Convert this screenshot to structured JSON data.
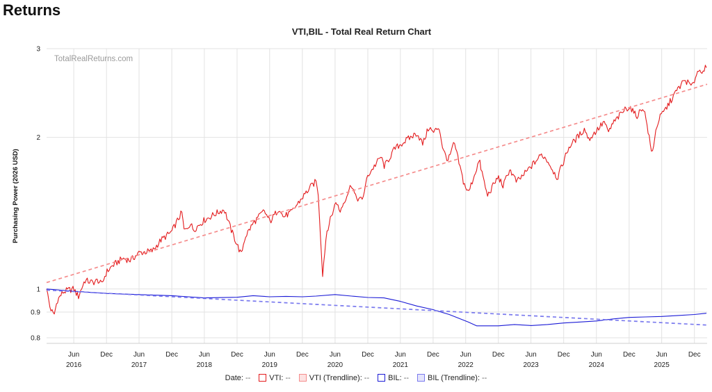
{
  "page": {
    "heading": "Returns"
  },
  "chart_data": {
    "type": "line",
    "title": "VTI,BIL - Total Real Return Chart",
    "watermark": "TotalRealReturns.com",
    "ylabel": "Purchasing Power (2026 USD)",
    "xlabel": "",
    "y_scale": "log",
    "ylim": [
      0.78,
      3.0
    ],
    "xlim": [
      "2016-01-01",
      "2026-02-10"
    ],
    "grid": true,
    "legend_position": "bottom",
    "y_ticks": [
      {
        "value": 0.8,
        "label": "0.8"
      },
      {
        "value": 0.9,
        "label": "0.9"
      },
      {
        "value": 1,
        "label": "1"
      },
      {
        "value": 2,
        "label": "2"
      },
      {
        "value": 3,
        "label": "3"
      }
    ],
    "x_ticks": [
      {
        "date": "2016-06-01",
        "label": "Jun",
        "year": "2016"
      },
      {
        "date": "2016-12-01",
        "label": "Dec",
        "year": ""
      },
      {
        "date": "2017-06-01",
        "label": "Jun",
        "year": "2017"
      },
      {
        "date": "2017-12-01",
        "label": "Dec",
        "year": ""
      },
      {
        "date": "2018-06-01",
        "label": "Jun",
        "year": "2018"
      },
      {
        "date": "2018-12-01",
        "label": "Dec",
        "year": ""
      },
      {
        "date": "2019-06-01",
        "label": "Jun",
        "year": "2019"
      },
      {
        "date": "2019-12-01",
        "label": "Dec",
        "year": ""
      },
      {
        "date": "2020-06-01",
        "label": "Jun",
        "year": "2020"
      },
      {
        "date": "2020-12-01",
        "label": "Dec",
        "year": ""
      },
      {
        "date": "2021-06-01",
        "label": "Jun",
        "year": "2021"
      },
      {
        "date": "2021-12-01",
        "label": "Dec",
        "year": ""
      },
      {
        "date": "2022-06-01",
        "label": "Jun",
        "year": "2022"
      },
      {
        "date": "2022-12-01",
        "label": "Dec",
        "year": ""
      },
      {
        "date": "2023-06-01",
        "label": "Jun",
        "year": "2023"
      },
      {
        "date": "2023-12-01",
        "label": "Dec",
        "year": ""
      },
      {
        "date": "2024-06-01",
        "label": "Jun",
        "year": "2024"
      },
      {
        "date": "2024-12-01",
        "label": "Dec",
        "year": ""
      },
      {
        "date": "2025-06-01",
        "label": "Jun",
        "year": "2025"
      },
      {
        "date": "2025-12-01",
        "label": "Dec",
        "year": ""
      }
    ],
    "series": [
      {
        "name": "VTI",
        "color": "#e31a1c",
        "dashed": false,
        "points": [
          [
            "2016-01-01",
            1.0
          ],
          [
            "2016-01-20",
            0.92
          ],
          [
            "2016-02-11",
            0.885
          ],
          [
            "2016-03-01",
            0.95
          ],
          [
            "2016-04-01",
            0.985
          ],
          [
            "2016-05-01",
            0.995
          ],
          [
            "2016-06-01",
            1.0
          ],
          [
            "2016-06-27",
            0.965
          ],
          [
            "2016-08-01",
            1.04
          ],
          [
            "2016-09-15",
            1.03
          ],
          [
            "2016-10-15",
            1.04
          ],
          [
            "2016-11-03",
            1.02
          ],
          [
            "2016-12-01",
            1.08
          ],
          [
            "2017-01-01",
            1.11
          ],
          [
            "2017-03-01",
            1.15
          ],
          [
            "2017-04-15",
            1.14
          ],
          [
            "2017-06-01",
            1.18
          ],
          [
            "2017-08-15",
            1.19
          ],
          [
            "2017-10-01",
            1.25
          ],
          [
            "2017-12-01",
            1.3
          ],
          [
            "2018-01-26",
            1.42
          ],
          [
            "2018-02-09",
            1.3
          ],
          [
            "2018-03-15",
            1.35
          ],
          [
            "2018-04-01",
            1.31
          ],
          [
            "2018-06-01",
            1.37
          ],
          [
            "2018-08-01",
            1.41
          ],
          [
            "2018-09-20",
            1.44
          ],
          [
            "2018-10-29",
            1.31
          ],
          [
            "2018-12-24",
            1.17
          ],
          [
            "2019-01-15",
            1.27
          ],
          [
            "2019-03-01",
            1.35
          ],
          [
            "2019-05-01",
            1.43
          ],
          [
            "2019-06-03",
            1.36
          ],
          [
            "2019-07-26",
            1.45
          ],
          [
            "2019-08-15",
            1.39
          ],
          [
            "2019-10-01",
            1.42
          ],
          [
            "2019-12-01",
            1.52
          ],
          [
            "2020-01-20",
            1.6
          ],
          [
            "2020-02-19",
            1.64
          ],
          [
            "2020-03-02",
            1.48
          ],
          [
            "2020-03-23",
            1.07
          ],
          [
            "2020-04-15",
            1.3
          ],
          [
            "2020-06-08",
            1.5
          ],
          [
            "2020-06-26",
            1.42
          ],
          [
            "2020-09-02",
            1.62
          ],
          [
            "2020-09-23",
            1.52
          ],
          [
            "2020-10-30",
            1.5
          ],
          [
            "2020-12-01",
            1.68
          ],
          [
            "2021-02-12",
            1.83
          ],
          [
            "2021-03-04",
            1.75
          ],
          [
            "2021-05-01",
            1.9
          ],
          [
            "2021-07-01",
            1.97
          ],
          [
            "2021-09-02",
            2.04
          ],
          [
            "2021-10-04",
            1.94
          ],
          [
            "2021-11-08",
            2.1
          ],
          [
            "2021-12-01",
            2.04
          ],
          [
            "2022-01-03",
            2.1
          ],
          [
            "2022-01-27",
            1.88
          ],
          [
            "2022-02-24",
            1.8
          ],
          [
            "2022-03-29",
            1.95
          ],
          [
            "2022-05-20",
            1.63
          ],
          [
            "2022-06-16",
            1.55
          ],
          [
            "2022-08-16",
            1.8
          ],
          [
            "2022-09-30",
            1.53
          ],
          [
            "2022-11-30",
            1.67
          ],
          [
            "2022-12-28",
            1.6
          ],
          [
            "2023-02-02",
            1.73
          ],
          [
            "2023-03-13",
            1.63
          ],
          [
            "2023-05-01",
            1.7
          ],
          [
            "2023-07-31",
            1.85
          ],
          [
            "2023-09-01",
            1.8
          ],
          [
            "2023-10-27",
            1.66
          ],
          [
            "2023-12-29",
            1.91
          ],
          [
            "2024-03-28",
            2.08
          ],
          [
            "2024-04-19",
            1.98
          ],
          [
            "2024-07-16",
            2.15
          ],
          [
            "2024-08-05",
            2.04
          ],
          [
            "2024-09-01",
            2.13
          ],
          [
            "2024-11-11",
            2.28
          ],
          [
            "2024-12-06",
            2.3
          ],
          [
            "2025-01-10",
            2.2
          ],
          [
            "2025-02-19",
            2.3
          ],
          [
            "2025-03-13",
            2.1
          ],
          [
            "2025-04-08",
            1.84
          ],
          [
            "2025-04-24",
            2.02
          ],
          [
            "2025-05-15",
            2.17
          ],
          [
            "2025-07-01",
            2.3
          ],
          [
            "2025-08-01",
            2.4
          ],
          [
            "2025-09-01",
            2.5
          ],
          [
            "2025-10-08",
            2.6
          ],
          [
            "2025-11-20",
            2.52
          ],
          [
            "2025-12-15",
            2.7
          ],
          [
            "2026-01-15",
            2.72
          ],
          [
            "2026-02-06",
            2.75
          ]
        ]
      },
      {
        "name": "VTI (Trendline)",
        "color": "#f58c8c",
        "dashed": true,
        "points": [
          [
            "2016-01-01",
            1.03
          ],
          [
            "2026-02-10",
            2.55
          ]
        ]
      },
      {
        "name": "BIL",
        "color": "#1a1ad6",
        "dashed": false,
        "points": [
          [
            "2016-01-01",
            1.0
          ],
          [
            "2016-06-01",
            0.99
          ],
          [
            "2016-12-01",
            0.98
          ],
          [
            "2017-06-01",
            0.975
          ],
          [
            "2017-12-01",
            0.97
          ],
          [
            "2018-06-01",
            0.96
          ],
          [
            "2018-12-01",
            0.963
          ],
          [
            "2019-03-01",
            0.97
          ],
          [
            "2019-06-01",
            0.965
          ],
          [
            "2019-09-01",
            0.967
          ],
          [
            "2019-12-01",
            0.965
          ],
          [
            "2020-02-15",
            0.968
          ],
          [
            "2020-06-01",
            0.975
          ],
          [
            "2020-09-01",
            0.968
          ],
          [
            "2020-12-01",
            0.962
          ],
          [
            "2021-03-01",
            0.96
          ],
          [
            "2021-06-01",
            0.945
          ],
          [
            "2021-09-01",
            0.925
          ],
          [
            "2021-12-01",
            0.91
          ],
          [
            "2022-03-01",
            0.89
          ],
          [
            "2022-06-15",
            0.86
          ],
          [
            "2022-08-01",
            0.845
          ],
          [
            "2022-12-01",
            0.845
          ],
          [
            "2023-03-01",
            0.85
          ],
          [
            "2023-06-01",
            0.846
          ],
          [
            "2023-09-01",
            0.85
          ],
          [
            "2023-12-01",
            0.856
          ],
          [
            "2024-03-01",
            0.86
          ],
          [
            "2024-06-01",
            0.864
          ],
          [
            "2024-09-01",
            0.872
          ],
          [
            "2024-12-01",
            0.878
          ],
          [
            "2025-03-01",
            0.88
          ],
          [
            "2025-06-01",
            0.882
          ],
          [
            "2025-09-01",
            0.886
          ],
          [
            "2025-12-01",
            0.89
          ],
          [
            "2026-02-06",
            0.895
          ]
        ]
      },
      {
        "name": "BIL (Trendline)",
        "color": "#7a7aee",
        "dashed": true,
        "points": [
          [
            "2016-01-01",
            0.995
          ],
          [
            "2026-02-10",
            0.848
          ]
        ]
      }
    ],
    "legend": [
      {
        "label": "Date:",
        "value": "--",
        "color": ""
      },
      {
        "label": "VTI:",
        "value": "--",
        "color": "#e31a1c",
        "fill": "#ffffff"
      },
      {
        "label": "VTI (Trendline):",
        "value": "--",
        "color": "#f58c8c",
        "fill": "#fde2e2"
      },
      {
        "label": "BIL:",
        "value": "--",
        "color": "#1a1ad6",
        "fill": "#ffffff"
      },
      {
        "label": "BIL (Trendline):",
        "value": "--",
        "color": "#7a7aee",
        "fill": "#e4e4fb"
      }
    ]
  }
}
